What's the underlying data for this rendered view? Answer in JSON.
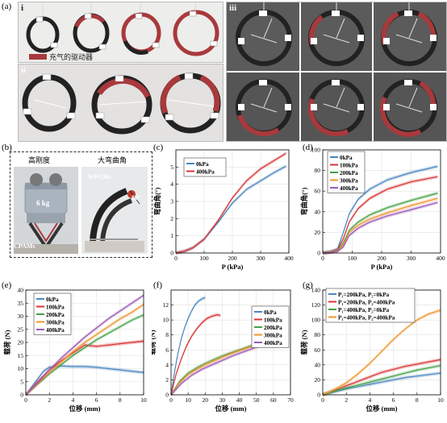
{
  "panel_labels": {
    "a": "(a)",
    "b": "(b)",
    "c": "(c)",
    "d": "(d)",
    "e": "(e)",
    "f": "(f)",
    "g": "(g)"
  },
  "panel_a": {
    "sub_i": "i",
    "sub_ii": "ii",
    "sub_iii": "iii",
    "legend_text": "充气的驱动器",
    "legend_color": "#a8393c"
  },
  "panel_b": {
    "left_title": "高刚度",
    "right_title": "大弯曲角",
    "weight_label": "6 kg",
    "cpams_label": "CPAMs",
    "wpams_label": "WPAMs",
    "angle_label": "86°"
  },
  "colors": {
    "c0": "#4a86c0",
    "c100": "#d93434",
    "c200": "#43a047",
    "c300": "#f0952c",
    "c400": "#9b59b6"
  },
  "chart_data": [
    {
      "id": "c",
      "type": "line",
      "xlabel": "P (kPa)",
      "ylabel": "弯曲角(°)",
      "xlim": [
        0,
        400
      ],
      "ylim": [
        0,
        6
      ],
      "xticks": [
        0,
        100,
        200,
        300,
        400
      ],
      "yticks": [
        0,
        1,
        2,
        3,
        4,
        5
      ],
      "series": [
        {
          "name": "0kPa",
          "color": "#4a86c0",
          "x": [
            0,
            30,
            60,
            100,
            150,
            200,
            250,
            300,
            350,
            390
          ],
          "y": [
            0,
            0.1,
            0.3,
            0.8,
            1.8,
            2.9,
            3.7,
            4.2,
            4.7,
            5.05
          ]
        },
        {
          "name": "400kPa",
          "color": "#d93434",
          "x": [
            0,
            30,
            60,
            100,
            150,
            200,
            250,
            300,
            350,
            390
          ],
          "y": [
            0,
            0.1,
            0.3,
            0.8,
            1.9,
            3.2,
            4.2,
            4.9,
            5.4,
            5.8
          ]
        }
      ]
    },
    {
      "id": "d",
      "type": "line",
      "xlabel": "P (kPa)",
      "ylabel": "弯曲角(°)",
      "xlim": [
        0,
        400
      ],
      "ylim": [
        0,
        100
      ],
      "xticks": [
        0,
        100,
        200,
        300,
        400
      ],
      "yticks": [
        0,
        20,
        40,
        60,
        80,
        100
      ],
      "series": [
        {
          "name": "0kPa",
          "color": "#4a86c0",
          "x": [
            0,
            25,
            50,
            70,
            90,
            120,
            160,
            220,
            300,
            390
          ],
          "y": [
            0,
            1,
            4,
            20,
            38,
            52,
            62,
            71,
            78,
            84
          ]
        },
        {
          "name": "100kPa",
          "color": "#d93434",
          "x": [
            0,
            25,
            50,
            70,
            90,
            120,
            160,
            220,
            300,
            390
          ],
          "y": [
            0,
            1,
            3,
            14,
            30,
            43,
            53,
            62,
            69,
            74
          ]
        },
        {
          "name": "200kPa",
          "color": "#43a047",
          "x": [
            0,
            25,
            50,
            70,
            90,
            120,
            160,
            220,
            300,
            390
          ],
          "y": [
            0,
            1,
            2,
            10,
            22,
            30,
            37,
            44,
            51,
            58
          ]
        },
        {
          "name": "300kPa",
          "color": "#f0952c",
          "x": [
            0,
            25,
            50,
            70,
            90,
            120,
            160,
            220,
            300,
            390
          ],
          "y": [
            0,
            0.5,
            2,
            8,
            20,
            27,
            33,
            39,
            46,
            53
          ]
        },
        {
          "name": "400kPa",
          "color": "#9b59b6",
          "x": [
            0,
            25,
            50,
            70,
            90,
            120,
            160,
            220,
            300,
            390
          ],
          "y": [
            0,
            0.5,
            1.5,
            6,
            17,
            24,
            30,
            36,
            42,
            49
          ]
        }
      ]
    },
    {
      "id": "e",
      "type": "line",
      "xlabel": "位移 (mm)",
      "ylabel": "载荷 (N)",
      "xlim": [
        0,
        10
      ],
      "ylim": [
        0,
        40
      ],
      "xticks": [
        0,
        2,
        4,
        6,
        8,
        10
      ],
      "yticks": [
        0,
        5,
        10,
        15,
        20,
        25,
        30,
        35,
        40
      ],
      "series": [
        {
          "name": "0kPa",
          "color": "#4a86c0",
          "x": [
            0,
            0.5,
            1,
            1.5,
            2,
            3,
            4,
            5,
            6,
            7,
            8,
            9,
            10
          ],
          "y": [
            0,
            3,
            6,
            9,
            10.5,
            11,
            10.8,
            10.8,
            10.5,
            10,
            9.5,
            9,
            8.5
          ]
        },
        {
          "name": "100kPa",
          "color": "#d93434",
          "x": [
            0,
            0.5,
            1,
            2,
            3,
            4,
            5,
            6,
            7,
            8,
            9,
            10
          ],
          "y": [
            0,
            2.5,
            5,
            9.5,
            13,
            16,
            19,
            18.5,
            19,
            19.5,
            20,
            20.5
          ]
        },
        {
          "name": "200kPa",
          "color": "#43a047",
          "x": [
            0,
            0.5,
            1,
            2,
            3,
            4,
            5,
            6,
            7,
            8,
            9,
            10
          ],
          "y": [
            0,
            2,
            4,
            8,
            11.5,
            15,
            18,
            21,
            23.5,
            26,
            28.5,
            30.5
          ]
        },
        {
          "name": "300kPa",
          "color": "#f0952c",
          "x": [
            0,
            0.5,
            1,
            2,
            3,
            4,
            5,
            6,
            7,
            8,
            9,
            10
          ],
          "y": [
            0,
            2,
            4.2,
            8.5,
            12.5,
            16.5,
            20,
            23,
            26,
            29,
            31.5,
            34.5
          ]
        },
        {
          "name": "400kPa",
          "color": "#9b59b6",
          "x": [
            0,
            0.5,
            1,
            2,
            3,
            4,
            5,
            6,
            7,
            8,
            9,
            10
          ],
          "y": [
            0,
            2.3,
            4.5,
            9.5,
            14,
            18,
            22,
            25.5,
            29,
            32,
            35,
            38
          ]
        }
      ]
    },
    {
      "id": "f",
      "type": "line",
      "xlabel": "位移 (mm)",
      "ylabel": "载荷 (N)",
      "xlim": [
        0,
        70
      ],
      "ylim": [
        0,
        14
      ],
      "xticks": [
        0,
        10,
        20,
        30,
        40,
        50,
        60,
        70
      ],
      "yticks": [
        0,
        2,
        4,
        6,
        8,
        10,
        12
      ],
      "series": [
        {
          "name": "0kPa",
          "color": "#4a86c0",
          "x": [
            0,
            2,
            4,
            6,
            8,
            10,
            12,
            14,
            16,
            18,
            20
          ],
          "y": [
            0,
            3,
            5.5,
            7.5,
            9,
            10.2,
            11.2,
            12,
            12.5,
            12.8,
            13
          ]
        },
        {
          "name": "100kPa",
          "color": "#d93434",
          "x": [
            0,
            3,
            6,
            9,
            12,
            15,
            18,
            21,
            24,
            27,
            29
          ],
          "y": [
            0,
            2.8,
            4.8,
            6.5,
            7.8,
            8.8,
            9.6,
            10.2,
            10.5,
            10.7,
            10.6
          ]
        },
        {
          "name": "200kPa",
          "color": "#43a047",
          "x": [
            0,
            5,
            10,
            15,
            20,
            25,
            30,
            35,
            40,
            45,
            50
          ],
          "y": [
            0,
            1.8,
            2.9,
            3.6,
            4.2,
            4.7,
            5.2,
            5.6,
            6.0,
            6.4,
            6.8
          ]
        },
        {
          "name": "300kPa",
          "color": "#f0952c",
          "x": [
            0,
            5,
            10,
            15,
            20,
            25,
            30,
            35,
            40,
            45,
            50
          ],
          "y": [
            0,
            1.6,
            2.7,
            3.4,
            4.0,
            4.5,
            5.0,
            5.5,
            5.9,
            6.3,
            6.6
          ]
        },
        {
          "name": "400kPa",
          "color": "#9b59b6",
          "x": [
            0,
            6,
            12,
            18,
            24,
            30,
            36,
            42,
            48,
            54,
            60
          ],
          "y": [
            0,
            1.5,
            2.6,
            3.4,
            4.0,
            4.6,
            5.2,
            5.7,
            6.2,
            6.7,
            7.2
          ]
        }
      ]
    },
    {
      "id": "g",
      "type": "line",
      "xlabel": "位移 (mm)",
      "ylabel": "载荷 (N)",
      "xlim": [
        0,
        10
      ],
      "ylim": [
        0,
        140
      ],
      "xticks": [
        0,
        2,
        4,
        6,
        8,
        10
      ],
      "yticks": [
        0,
        20,
        40,
        60,
        80,
        100,
        120,
        140
      ],
      "series": [
        {
          "name": "P₁=200kPa, P₂=0kPa",
          "color": "#4a86c0",
          "x": [
            0,
            1,
            2,
            3,
            4,
            5,
            6,
            7,
            8,
            9,
            10
          ],
          "y": [
            0,
            4,
            8,
            11,
            14,
            17,
            20,
            23,
            25,
            27,
            29
          ]
        },
        {
          "name": "P₁=200kPa, P₂=400kPa",
          "color": "#d93434",
          "x": [
            0,
            1,
            2,
            3,
            4,
            5,
            6,
            7,
            8,
            9,
            10
          ],
          "y": [
            0,
            6,
            12,
            18,
            24,
            30,
            34,
            38,
            41,
            44,
            47
          ]
        },
        {
          "name": "P₁=400kPa, P₂=0kPa",
          "color": "#43a047",
          "x": [
            0,
            1,
            2,
            3,
            4,
            5,
            6,
            7,
            8,
            9,
            10
          ],
          "y": [
            0,
            5,
            9,
            13,
            17,
            21,
            25,
            29,
            33,
            36,
            39
          ]
        },
        {
          "name": "P₁=400kPa, P₂=400kPa",
          "color": "#f0952c",
          "x": [
            0,
            1,
            2,
            3,
            4,
            5,
            6,
            7,
            8,
            9,
            10
          ],
          "y": [
            0,
            7,
            16,
            28,
            42,
            58,
            74,
            88,
            100,
            108,
            113
          ]
        }
      ]
    }
  ]
}
